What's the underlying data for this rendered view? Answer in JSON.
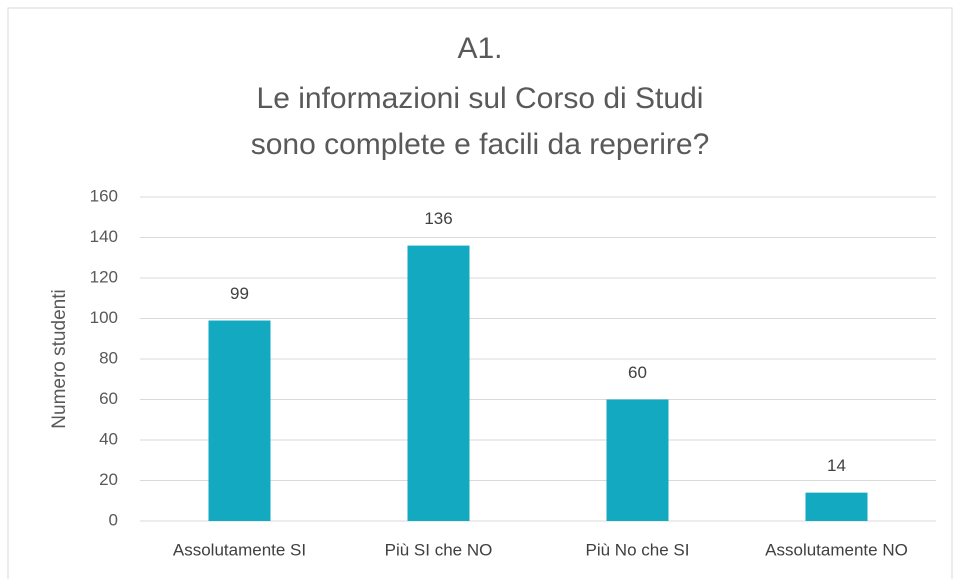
{
  "chart_data": {
    "type": "bar",
    "title": [
      "A1.",
      "Le informazioni sul Corso di Studi",
      "sono complete e facili da reperire?"
    ],
    "y_label": "Numero studenti",
    "categories": [
      "Assolutamente SI",
      "Più SI che NO",
      "Più No che SI",
      "Assolutamente NO"
    ],
    "values": [
      99,
      136,
      60,
      14
    ],
    "color": "#13a9c1",
    "ylim": [
      0,
      160
    ],
    "yticks": [
      0,
      20,
      40,
      60,
      80,
      100,
      120,
      140,
      160
    ],
    "grid": true
  }
}
